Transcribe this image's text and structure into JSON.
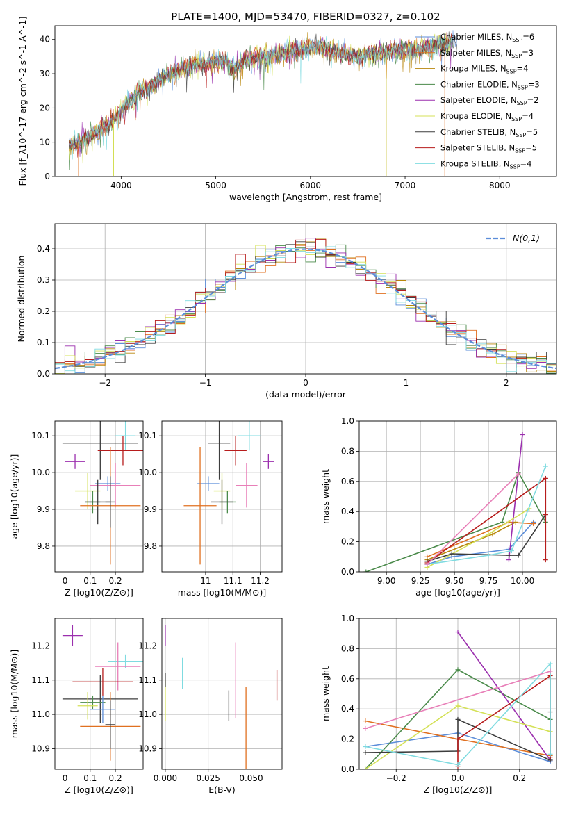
{
  "figure": {
    "title": "PLATE=1400, MJD=53470, FIBERID=0327, z=0.102"
  },
  "colors": {
    "chabrier_miles": "#5b8dd9",
    "salpeter_miles": "#e07020",
    "kroupa_miles": "#b8860b",
    "chabrier_elodie": "#4a8a4a",
    "salpeter_elodie": "#9b2fae",
    "kroupa_elodie": "#d4e157",
    "chabrier_stelib": "#3d3d3d",
    "salpeter_stelib": "#b71c1c",
    "kroupa_stelib": "#7fdbe0",
    "extra_pink": "#e87fb8",
    "normal_curve": "#5b8dd9"
  },
  "chart_data": [
    {
      "id": "spectrum",
      "type": "line",
      "xlabel": "wavelength [Angstrom, rest frame]",
      "ylabel": "Flux [f_λ10^-17 erg cm^-2 s^-1 A^-1]",
      "xlim": [
        3300,
        8600
      ],
      "ylim": [
        0,
        44
      ],
      "xticks": [
        4000,
        5000,
        6000,
        7000,
        8000
      ],
      "yticks": [
        0,
        10,
        20,
        30,
        40
      ],
      "legend_position": "right",
      "legend": [
        {
          "label": "Chabrier MILES, N",
          "sub": "SSP",
          "suffix": "=6",
          "color_key": "chabrier_miles"
        },
        {
          "label": "Salpeter MILES, N",
          "sub": "SSP",
          "suffix": "=3",
          "color_key": "salpeter_miles"
        },
        {
          "label": "Kroupa MILES, N",
          "sub": "SSP",
          "suffix": "=4",
          "color_key": "kroupa_miles"
        },
        {
          "label": "Chabrier ELODIE, N",
          "sub": "SSP",
          "suffix": "=3",
          "color_key": "chabrier_elodie"
        },
        {
          "label": "Salpeter ELODIE, N",
          "sub": "SSP",
          "suffix": "=2",
          "color_key": "salpeter_elodie"
        },
        {
          "label": "Kroupa ELODIE, N",
          "sub": "SSP",
          "suffix": "=4",
          "color_key": "kroupa_elodie"
        },
        {
          "label": "Chabrier STELIB, N",
          "sub": "SSP",
          "suffix": "=5",
          "color_key": "chabrier_stelib"
        },
        {
          "label": "Salpeter STELIB, N",
          "sub": "SSP",
          "suffix": "=5",
          "color_key": "salpeter_stelib"
        },
        {
          "label": "Kroupa STELIB, N",
          "sub": "SSP",
          "suffix": "=4",
          "color_key": "kroupa_stelib"
        }
      ],
      "continuum": [
        [
          3450,
          9
        ],
        [
          3550,
          10
        ],
        [
          3700,
          12
        ],
        [
          3800,
          14
        ],
        [
          3900,
          16
        ],
        [
          4000,
          19
        ],
        [
          4100,
          22
        ],
        [
          4200,
          25
        ],
        [
          4300,
          26
        ],
        [
          4400,
          28
        ],
        [
          4500,
          30
        ],
        [
          4700,
          32
        ],
        [
          4900,
          33
        ],
        [
          5100,
          34
        ],
        [
          5200,
          31
        ],
        [
          5300,
          34
        ],
        [
          5500,
          35
        ],
        [
          5700,
          36
        ],
        [
          5900,
          37
        ],
        [
          6100,
          38
        ],
        [
          6300,
          36
        ],
        [
          6500,
          35
        ],
        [
          6700,
          36
        ],
        [
          6900,
          37
        ],
        [
          7100,
          37
        ],
        [
          7300,
          38
        ],
        [
          7500,
          39
        ]
      ],
      "range_lines": [
        {
          "color_key": "salpeter_miles",
          "x0": 3550,
          "x1": 7420
        },
        {
          "color_key": "kroupa_miles",
          "x0": 3920,
          "x1": 6800
        },
        {
          "color_key": "kroupa_elodie",
          "x0": 3920,
          "x1": 6800
        }
      ]
    },
    {
      "id": "residual_hist",
      "type": "step",
      "xlabel": "(data-model)/error",
      "ylabel": "Normed distribution",
      "xlim": [
        -2.5,
        2.5
      ],
      "ylim": [
        0,
        0.48
      ],
      "xticks": [
        -2,
        -1,
        0,
        1,
        2
      ],
      "yticks": [
        0.0,
        0.1,
        0.2,
        0.3,
        0.4
      ],
      "grid": true,
      "bin_width": 0.1,
      "legend_position": "top-right",
      "legend_label": "N(0,1)"
    },
    {
      "id": "age_vs_Z",
      "type": "errorbar",
      "xlabel": "Z [log10(Z/Z⊙)]",
      "ylabel": "age  [log10(age/yr)]",
      "xlim": [
        -0.04,
        0.31
      ],
      "ylim": [
        9.73,
        10.14
      ],
      "xticks": [
        0.0,
        0.1,
        0.2
      ],
      "yticks": [
        9.8,
        9.9,
        10.0,
        10.1
      ],
      "grid": true,
      "points": [
        {
          "c": "kroupa_stelib",
          "x": 0.24,
          "y": 10.1,
          "xe": 0.04,
          "ye": 0.04
        },
        {
          "c": "chabrier_stelib",
          "x": 0.14,
          "y": 10.08,
          "xe": 0.15,
          "ye": 0.1
        },
        {
          "c": "salpeter_stelib",
          "x": 0.23,
          "y": 10.06,
          "xe": 0.1,
          "ye": 0.04
        },
        {
          "c": "salpeter_elodie",
          "x": 0.04,
          "y": 10.03,
          "xe": 0.04,
          "ye": 0.02
        },
        {
          "c": "chabrier_miles",
          "x": 0.17,
          "y": 9.97,
          "xe": 0.05,
          "ye": 0.02
        },
        {
          "c": "extra_pink",
          "x": 0.2,
          "y": 9.965,
          "xe": 0.1,
          "ye": 0.06
        },
        {
          "c": "kroupa_elodie",
          "x": 0.09,
          "y": 9.95,
          "xe": 0.05,
          "ye": 0.05
        },
        {
          "c": "chabrier_elodie",
          "x": 0.11,
          "y": 9.92,
          "xe": 0.03,
          "ye": 0.03
        },
        {
          "c": "chabrier_stelib",
          "x": 0.13,
          "y": 9.92,
          "xe": 0.05,
          "ye": 0.06
        },
        {
          "c": "salpeter_miles",
          "x": 0.18,
          "y": 9.91,
          "xe": 0.12,
          "ye": 0.16
        },
        {
          "c": "chabrier_stelib",
          "x": 0.18,
          "y": 9.92,
          "xe": 0.02,
          "ye": 0.07
        }
      ]
    },
    {
      "id": "age_vs_mass",
      "type": "errorbar",
      "xlabel": "mass [log10(M/M⊙)]",
      "ylabel": "",
      "xlim": [
        10.84,
        11.28
      ],
      "ylim": [
        9.73,
        10.14
      ],
      "xticks": [
        11.0,
        11.1,
        11.2
      ],
      "yticks": [
        9.8,
        9.9,
        10.0,
        10.1
      ],
      "grid": true,
      "points": [
        {
          "c": "kroupa_stelib",
          "x": 11.16,
          "y": 10.1,
          "xe": 0.04,
          "ye": 0.04
        },
        {
          "c": "chabrier_stelib",
          "x": 11.05,
          "y": 10.08,
          "xe": 0.04,
          "ye": 0.1
        },
        {
          "c": "salpeter_stelib",
          "x": 11.11,
          "y": 10.06,
          "xe": 0.04,
          "ye": 0.04
        },
        {
          "c": "salpeter_elodie",
          "x": 11.23,
          "y": 10.03,
          "xe": 0.02,
          "ye": 0.02
        },
        {
          "c": "chabrier_miles",
          "x": 11.01,
          "y": 9.97,
          "xe": 0.04,
          "ye": 0.02
        },
        {
          "c": "extra_pink",
          "x": 11.15,
          "y": 9.965,
          "xe": 0.04,
          "ye": 0.06
        },
        {
          "c": "kroupa_elodie",
          "x": 11.06,
          "y": 9.95,
          "xe": 0.03,
          "ye": 0.05
        },
        {
          "c": "chabrier_elodie",
          "x": 11.08,
          "y": 9.92,
          "xe": 0.03,
          "ye": 0.03
        },
        {
          "c": "chabrier_stelib",
          "x": 11.06,
          "y": 9.92,
          "xe": 0.04,
          "ye": 0.06
        },
        {
          "c": "salpeter_miles",
          "x": 10.98,
          "y": 9.91,
          "xe": 0.06,
          "ye": 0.16
        }
      ]
    },
    {
      "id": "weight_vs_age",
      "type": "line",
      "xlabel": "age  [log10(age/yr)]",
      "ylabel": "mass weight",
      "xlim": [
        8.8,
        10.25
      ],
      "ylim": [
        0,
        1.0
      ],
      "xticks": [
        9.0,
        9.25,
        9.5,
        9.75,
        10.0
      ],
      "xticklabels": [
        "9.00",
        "9.25",
        "9.50",
        "9.75",
        "10.00"
      ],
      "yticks": [
        0.0,
        0.2,
        0.4,
        0.6,
        0.8,
        1.0
      ],
      "grid": true,
      "series": [
        {
          "c": "chabrier_miles",
          "x": [
            9.3,
            9.48,
            9.9,
            10.08
          ],
          "y": [
            0.05,
            0.1,
            0.15,
            0.33
          ]
        },
        {
          "c": "salpeter_miles",
          "x": [
            9.3,
            9.9,
            10.08
          ],
          "y": [
            0.1,
            0.33,
            0.32
          ]
        },
        {
          "c": "kroupa_miles",
          "x": [
            9.3,
            9.78,
            9.95
          ],
          "y": [
            0.08,
            0.25,
            0.33
          ]
        },
        {
          "c": "chabrier_elodie",
          "x": [
            8.85,
            9.85,
            9.97,
            10.17
          ],
          "y": [
            0.0,
            0.33,
            0.66,
            0.33
          ]
        },
        {
          "c": "salpeter_elodie",
          "x": [
            9.9,
            10.0
          ],
          "y": [
            0.08,
            0.91
          ]
        },
        {
          "c": "kroupa_elodie",
          "x": [
            9.3,
            9.75,
            10.05
          ],
          "y": [
            0.03,
            0.25,
            0.42
          ]
        },
        {
          "c": "chabrier_stelib",
          "x": [
            9.3,
            9.48,
            9.9,
            9.97,
            10.17
          ],
          "y": [
            0.07,
            0.12,
            0.11,
            0.11,
            0.38
          ]
        },
        {
          "c": "salpeter_stelib",
          "x": [
            9.3,
            10.17,
            10.17,
            10.17,
            10.17
          ],
          "y": [
            0.06,
            0.62,
            0.38,
            0.08,
            0.62
          ]
        },
        {
          "c": "kroupa_stelib",
          "x": [
            9.3,
            9.75,
            9.92,
            10.17
          ],
          "y": [
            0.05,
            0.11,
            0.14,
            0.7
          ]
        },
        {
          "c": "extra_pink",
          "x": [
            9.3,
            9.97
          ],
          "y": [
            0.05,
            0.65
          ]
        }
      ]
    },
    {
      "id": "mass_vs_Z",
      "type": "errorbar",
      "xlabel": "Z [log10(Z/Z⊙)]",
      "ylabel": "mass [log10(M/M⊙)]",
      "xlim": [
        -0.04,
        0.31
      ],
      "ylim": [
        10.84,
        11.28
      ],
      "xticks": [
        0.0,
        0.1,
        0.2
      ],
      "yticks": [
        10.9,
        11.0,
        11.1,
        11.2
      ],
      "grid": true,
      "points": [
        {
          "c": "salpeter_elodie",
          "x": 0.03,
          "y": 11.23,
          "xe": 0.04,
          "ye": 0.03
        },
        {
          "c": "kroupa_stelib",
          "x": 0.24,
          "y": 11.155,
          "xe": 0.07,
          "ye": 0.02
        },
        {
          "c": "extra_pink",
          "x": 0.21,
          "y": 11.14,
          "xe": 0.09,
          "ye": 0.07
        },
        {
          "c": "salpeter_stelib",
          "x": 0.15,
          "y": 11.095,
          "xe": 0.12,
          "ye": 0.04
        },
        {
          "c": "chabrier_stelib",
          "x": 0.14,
          "y": 11.045,
          "xe": 0.15,
          "ye": 0.07
        },
        {
          "c": "chabrier_elodie",
          "x": 0.11,
          "y": 11.035,
          "xe": 0.05,
          "ye": 0.02
        },
        {
          "c": "kroupa_elodie",
          "x": 0.09,
          "y": 11.025,
          "xe": 0.04,
          "ye": 0.04
        },
        {
          "c": "chabrier_miles",
          "x": 0.15,
          "y": 11.015,
          "xe": 0.05,
          "ye": 0.04
        },
        {
          "c": "salpeter_miles",
          "x": 0.18,
          "y": 10.965,
          "xe": 0.12,
          "ye": 0.1
        },
        {
          "c": "chabrier_stelib",
          "x": 0.18,
          "y": 10.97,
          "xe": 0.02,
          "ye": 0.07
        }
      ]
    },
    {
      "id": "mass_vs_EBV",
      "type": "errorbar",
      "xlabel": "E(B-V)",
      "ylabel": "",
      "xlim": [
        -0.002,
        0.068
      ],
      "ylim": [
        10.84,
        11.28
      ],
      "xticks": [
        0.0,
        0.025,
        0.05
      ],
      "xticklabels": [
        "0.000",
        "0.025",
        "0.050"
      ],
      "yticks": [
        10.9,
        11.0,
        11.1,
        11.2
      ],
      "grid": true,
      "points": [
        {
          "c": "salpeter_elodie",
          "x": 0.0,
          "y": 11.23,
          "xe": 0.0,
          "ye": 0.03
        },
        {
          "c": "kroupa_elodie",
          "x": 0.0,
          "y": 11.04,
          "xe": 0.0,
          "ye": 0.06
        },
        {
          "c": "chabrier_stelib",
          "x": 0.0,
          "y": 11.1,
          "xe": 0.0,
          "ye": 0.02
        },
        {
          "c": "kroupa_stelib",
          "x": 0.01,
          "y": 11.12,
          "xe": 0.0,
          "ye": 0.045
        },
        {
          "c": "extra_pink",
          "x": 0.041,
          "y": 11.1,
          "xe": 0.0,
          "ye": 0.11
        },
        {
          "c": "chabrier_stelib",
          "x": 0.037,
          "y": 11.025,
          "xe": 0.0,
          "ye": 0.045
        },
        {
          "c": "salpeter_miles",
          "x": 0.047,
          "y": 10.96,
          "xe": 0.0,
          "ye": 0.12
        },
        {
          "c": "salpeter_stelib",
          "x": 0.065,
          "y": 11.085,
          "xe": 0.0,
          "ye": 0.045
        }
      ]
    },
    {
      "id": "weight_vs_Z",
      "type": "line",
      "xlabel": "Z [log10(Z/Z⊙)]",
      "ylabel": "mass weight",
      "xlim": [
        -0.32,
        0.32
      ],
      "ylim": [
        0,
        1.0
      ],
      "xticks": [
        -0.2,
        0.0,
        0.2
      ],
      "xticklabels": [
        "−0.2",
        "0.0",
        "0.2"
      ],
      "yticks": [
        0.0,
        0.2,
        0.4,
        0.6,
        0.8,
        1.0
      ],
      "grid": true,
      "series": [
        {
          "c": "chabrier_miles",
          "x": [
            -0.3,
            0.0,
            0.3
          ],
          "y": [
            0.15,
            0.24,
            0.05
          ]
        },
        {
          "c": "salpeter_miles",
          "x": [
            -0.3,
            0.0,
            0.3
          ],
          "y": [
            0.32,
            0.2,
            0.09
          ]
        },
        {
          "c": "chabrier_elodie",
          "x": [
            -0.3,
            0.0,
            0.3
          ],
          "y": [
            0.0,
            0.66,
            0.33
          ]
        },
        {
          "c": "salpeter_elodie",
          "x": [
            0.0,
            0.3
          ],
          "y": [
            0.91,
            0.06
          ]
        },
        {
          "c": "kroupa_elodie",
          "x": [
            -0.3,
            0.0,
            0.3
          ],
          "y": [
            0.0,
            0.42,
            0.25
          ]
        },
        {
          "c": "chabrier_stelib",
          "x": [
            -0.3,
            0.0,
            0.0,
            0.3,
            0.3
          ],
          "y": [
            0.11,
            0.12,
            0.33,
            0.06,
            0.38
          ]
        },
        {
          "c": "salpeter_stelib",
          "x": [
            0.0,
            0.0,
            0.3,
            0.3
          ],
          "y": [
            0.02,
            0.2,
            0.62,
            0.08
          ]
        },
        {
          "c": "kroupa_stelib",
          "x": [
            -0.3,
            0.0,
            0.3,
            0.3
          ],
          "y": [
            0.15,
            0.03,
            0.7,
            0.1
          ]
        },
        {
          "c": "extra_pink",
          "x": [
            -0.3,
            0.3
          ],
          "y": [
            0.27,
            0.65
          ]
        }
      ]
    }
  ]
}
